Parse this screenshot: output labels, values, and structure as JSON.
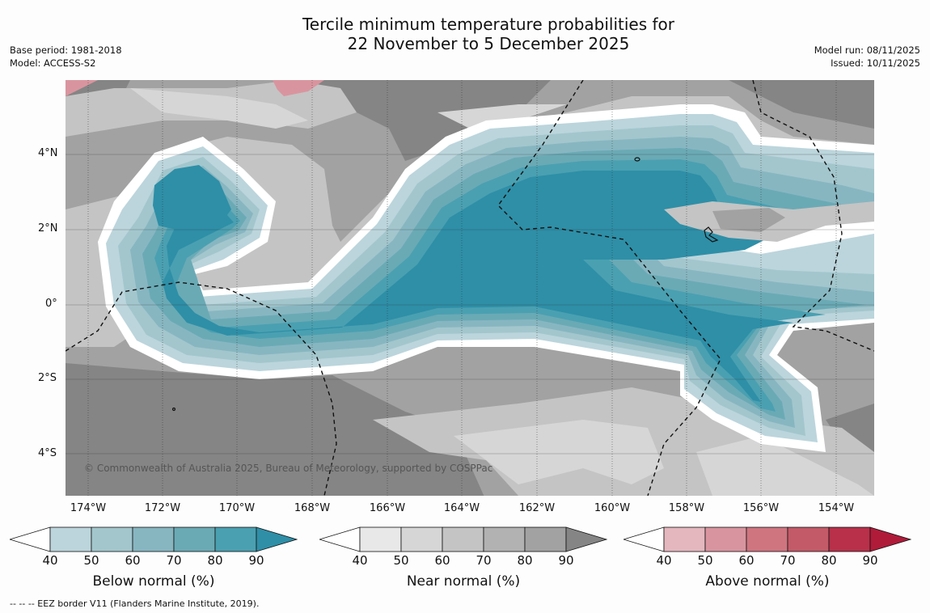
{
  "title_line1": "Tercile minimum temperature probabilities for",
  "title_line2": "22 November to 5 December 2025",
  "base_period": "Base period: 1981-2018",
  "model": "Model: ACCESS-S2",
  "model_run": "Model run: 08/11/2025",
  "issued": "Issued: 10/11/2025",
  "lat_labels": [
    "4°N",
    "2°N",
    "0°",
    "2°S",
    "4°S"
  ],
  "lon_labels": [
    "174°W",
    "172°W",
    "170°W",
    "168°W",
    "166°W",
    "164°W",
    "162°W",
    "160°W",
    "158°W",
    "156°W",
    "154°W"
  ],
  "credit": "© Commonwealth of Australia 2025, Bureau of Meteorology, supported by COSPPac",
  "colorbars": [
    {
      "title": "Below normal (%)",
      "ticks": [
        "40",
        "50",
        "60",
        "70",
        "80",
        "90"
      ],
      "colors": [
        "#ffffff",
        "#bcd5dc",
        "#a3c6cd",
        "#87b6c1",
        "#6aaab5",
        "#4aa0b1",
        "#2e8fa7"
      ]
    },
    {
      "title": "Near normal (%)",
      "ticks": [
        "40",
        "50",
        "60",
        "70",
        "80",
        "90"
      ],
      "colors": [
        "#ffffff",
        "#e8e8e8",
        "#d6d6d6",
        "#c4c4c4",
        "#b2b2b2",
        "#a2a2a2",
        "#858585"
      ]
    },
    {
      "title": "Above normal (%)",
      "ticks": [
        "40",
        "50",
        "60",
        "70",
        "80",
        "90"
      ],
      "colors": [
        "#ffffff",
        "#e4b7be",
        "#d9959f",
        "#cf7580",
        "#c35a68",
        "#b8304a",
        "#b01b3a"
      ]
    }
  ],
  "footer": "--  --  -- EEZ border V11 (Flanders Marine Institute, 2019)."
}
